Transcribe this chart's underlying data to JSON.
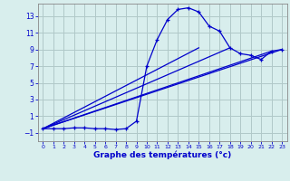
{
  "bg_color": "#d8eeed",
  "grid_color": "#b0c8c8",
  "line_color": "#0000cc",
  "marker": "+",
  "title": "Graphe des températures (°c)",
  "xlim": [
    -0.5,
    23.5
  ],
  "ylim": [
    -2.0,
    14.5
  ],
  "yticks": [
    -1,
    1,
    3,
    5,
    7,
    9,
    11,
    13
  ],
  "xticks": [
    0,
    1,
    2,
    3,
    4,
    5,
    6,
    7,
    8,
    9,
    10,
    11,
    12,
    13,
    14,
    15,
    16,
    17,
    18,
    19,
    20,
    21,
    22,
    23
  ],
  "hours": [
    0,
    1,
    2,
    3,
    4,
    5,
    6,
    7,
    8,
    9,
    10,
    11,
    12,
    13,
    14,
    15,
    16,
    17,
    18,
    19,
    20,
    21,
    22,
    23
  ],
  "temp_main": [
    -0.5,
    -0.5,
    -0.5,
    -0.4,
    -0.4,
    -0.5,
    -0.5,
    -0.6,
    -0.5,
    0.4,
    7.0,
    10.2,
    12.6,
    13.8,
    14.0,
    13.5,
    11.8,
    11.2,
    9.2,
    8.5,
    8.3,
    7.8,
    8.8,
    9.0
  ],
  "line1_x": [
    0,
    15
  ],
  "line1_y": [
    -0.5,
    9.2
  ],
  "line2_x": [
    0,
    22
  ],
  "line2_y": [
    -0.5,
    8.8
  ],
  "line3_x": [
    0,
    23
  ],
  "line3_y": [
    -0.5,
    9.0
  ],
  "line4_x": [
    0,
    18
  ],
  "line4_y": [
    -0.5,
    9.2
  ]
}
